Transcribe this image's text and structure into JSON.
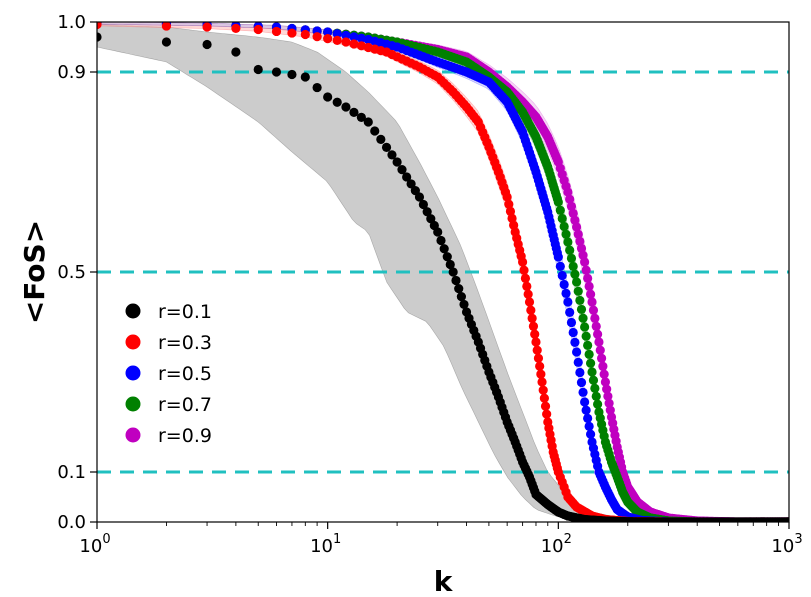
{
  "chart_data": {
    "type": "scatter",
    "xscale": "log",
    "xlim": [
      1,
      1000
    ],
    "ylim": [
      0,
      1
    ],
    "xlabel": "k",
    "ylabel": "<FoS>",
    "xticks": [
      {
        "value": 1,
        "base": "10",
        "exp": "0"
      },
      {
        "value": 10,
        "base": "10",
        "exp": "1"
      },
      {
        "value": 100,
        "base": "10",
        "exp": "2"
      },
      {
        "value": 1000,
        "base": "10",
        "exp": "3"
      }
    ],
    "yticks": [
      {
        "value": 0,
        "label": "0.0"
      },
      {
        "value": 0.1,
        "label": "0.1"
      },
      {
        "value": 0.5,
        "label": "0.5"
      },
      {
        "value": 0.9,
        "label": "0.9"
      },
      {
        "value": 1,
        "label": "1.0"
      }
    ],
    "hlines": [
      0.1,
      0.5,
      0.9
    ],
    "hline_color": "#20c0c0",
    "legend_position": "center-left",
    "series": [
      {
        "name": "r=0.1",
        "color": "#000000",
        "band_color": "#b0b0b0",
        "points": [
          [
            1,
            0.97
          ],
          [
            2,
            0.96
          ],
          [
            3,
            0.955
          ],
          [
            4,
            0.94
          ],
          [
            5,
            0.905
          ],
          [
            6,
            0.9
          ],
          [
            7,
            0.895
          ],
          [
            8,
            0.89
          ],
          [
            10,
            0.85
          ],
          [
            12,
            0.83
          ],
          [
            15,
            0.8
          ],
          [
            20,
            0.72
          ],
          [
            25,
            0.65
          ],
          [
            30,
            0.58
          ],
          [
            35,
            0.5
          ],
          [
            40,
            0.42
          ],
          [
            45,
            0.36
          ],
          [
            50,
            0.3
          ],
          [
            55,
            0.25
          ],
          [
            60,
            0.2
          ],
          [
            65,
            0.16
          ],
          [
            70,
            0.12
          ],
          [
            75,
            0.09
          ],
          [
            80,
            0.055
          ],
          [
            90,
            0.035
          ],
          [
            100,
            0.02
          ],
          [
            110,
            0.012
          ],
          [
            130,
            0.005
          ],
          [
            160,
            0.002
          ],
          [
            200,
            0.0005
          ],
          [
            300,
            0.0
          ],
          [
            500,
            0.0
          ],
          [
            1000,
            0.0
          ]
        ],
        "band_low": [
          [
            1,
            0.95
          ],
          [
            2,
            0.92
          ],
          [
            3,
            0.87
          ],
          [
            5,
            0.8
          ],
          [
            7,
            0.74
          ],
          [
            10,
            0.68
          ],
          [
            13,
            0.6
          ],
          [
            15,
            0.58
          ],
          [
            18,
            0.48
          ],
          [
            22,
            0.42
          ],
          [
            27,
            0.4
          ],
          [
            32,
            0.35
          ],
          [
            38,
            0.27
          ],
          [
            45,
            0.2
          ],
          [
            52,
            0.14
          ],
          [
            60,
            0.09
          ],
          [
            70,
            0.05
          ],
          [
            80,
            0.025
          ],
          [
            100,
            0.01
          ],
          [
            130,
            0.003
          ],
          [
            200,
            0.0
          ],
          [
            1000,
            0.0
          ]
        ],
        "band_high": [
          [
            1,
            0.995
          ],
          [
            2,
            0.99
          ],
          [
            3,
            0.98
          ],
          [
            5,
            0.97
          ],
          [
            7,
            0.96
          ],
          [
            9,
            0.94
          ],
          [
            12,
            0.9
          ],
          [
            15,
            0.86
          ],
          [
            20,
            0.8
          ],
          [
            25,
            0.72
          ],
          [
            30,
            0.65
          ],
          [
            38,
            0.55
          ],
          [
            45,
            0.46
          ],
          [
            52,
            0.38
          ],
          [
            60,
            0.3
          ],
          [
            70,
            0.22
          ],
          [
            80,
            0.15
          ],
          [
            90,
            0.1
          ],
          [
            110,
            0.05
          ],
          [
            140,
            0.02
          ],
          [
            200,
            0.005
          ],
          [
            300,
            0.0
          ],
          [
            1000,
            0.0
          ]
        ]
      },
      {
        "name": "r=0.3",
        "color": "#ff0000",
        "band_color": "#ffb6b6",
        "points": [
          [
            1,
            0.995
          ],
          [
            3,
            0.99
          ],
          [
            5,
            0.985
          ],
          [
            8,
            0.975
          ],
          [
            12,
            0.96
          ],
          [
            18,
            0.94
          ],
          [
            25,
            0.91
          ],
          [
            30,
            0.89
          ],
          [
            35,
            0.86
          ],
          [
            40,
            0.83
          ],
          [
            45,
            0.8
          ],
          [
            50,
            0.75
          ],
          [
            55,
            0.7
          ],
          [
            60,
            0.65
          ],
          [
            65,
            0.58
          ],
          [
            70,
            0.52
          ],
          [
            75,
            0.44
          ],
          [
            80,
            0.36
          ],
          [
            85,
            0.28
          ],
          [
            90,
            0.2
          ],
          [
            95,
            0.14
          ],
          [
            100,
            0.1
          ],
          [
            105,
            0.075
          ],
          [
            110,
            0.05
          ],
          [
            120,
            0.03
          ],
          [
            140,
            0.012
          ],
          [
            160,
            0.005
          ],
          [
            200,
            0.001
          ],
          [
            300,
            0.0
          ],
          [
            1000,
            0.0
          ]
        ],
        "band_width": 0.03
      },
      {
        "name": "r=0.5",
        "color": "#0000ff",
        "band_color": "#b6b6ff",
        "points": [
          [
            1,
            0.998
          ],
          [
            3,
            0.995
          ],
          [
            6,
            0.99
          ],
          [
            10,
            0.98
          ],
          [
            15,
            0.965
          ],
          [
            20,
            0.95
          ],
          [
            30,
            0.92
          ],
          [
            40,
            0.9
          ],
          [
            50,
            0.88
          ],
          [
            60,
            0.84
          ],
          [
            70,
            0.78
          ],
          [
            80,
            0.7
          ],
          [
            90,
            0.62
          ],
          [
            100,
            0.53
          ],
          [
            110,
            0.44
          ],
          [
            120,
            0.34
          ],
          [
            130,
            0.24
          ],
          [
            140,
            0.16
          ],
          [
            150,
            0.1
          ],
          [
            160,
            0.07
          ],
          [
            170,
            0.045
          ],
          [
            180,
            0.025
          ],
          [
            200,
            0.01
          ],
          [
            230,
            0.003
          ],
          [
            300,
            0.0
          ],
          [
            1000,
            0.0
          ]
        ],
        "band_width": 0.03
      },
      {
        "name": "r=0.7",
        "color": "#008000",
        "band_color": "#b6dcb6",
        "points": [
          [
            1,
            0.998
          ],
          [
            3,
            0.995
          ],
          [
            6,
            0.99
          ],
          [
            10,
            0.98
          ],
          [
            15,
            0.97
          ],
          [
            20,
            0.96
          ],
          [
            30,
            0.94
          ],
          [
            40,
            0.92
          ],
          [
            50,
            0.89
          ],
          [
            60,
            0.86
          ],
          [
            70,
            0.82
          ],
          [
            80,
            0.77
          ],
          [
            90,
            0.71
          ],
          [
            100,
            0.64
          ],
          [
            110,
            0.56
          ],
          [
            120,
            0.48
          ],
          [
            130,
            0.39
          ],
          [
            140,
            0.3
          ],
          [
            150,
            0.22
          ],
          [
            160,
            0.16
          ],
          [
            170,
            0.12
          ],
          [
            180,
            0.09
          ],
          [
            190,
            0.06
          ],
          [
            200,
            0.04
          ],
          [
            220,
            0.02
          ],
          [
            250,
            0.008
          ],
          [
            300,
            0.002
          ],
          [
            400,
            0.0
          ],
          [
            1000,
            0.0
          ]
        ],
        "band_width": 0.03
      },
      {
        "name": "r=0.9",
        "color": "#c000c0",
        "band_color": "#ecb6ec",
        "points": [
          [
            1,
            0.998
          ],
          [
            3,
            0.995
          ],
          [
            6,
            0.99
          ],
          [
            10,
            0.98
          ],
          [
            15,
            0.97
          ],
          [
            20,
            0.96
          ],
          [
            30,
            0.945
          ],
          [
            40,
            0.93
          ],
          [
            50,
            0.9
          ],
          [
            60,
            0.87
          ],
          [
            70,
            0.84
          ],
          [
            80,
            0.81
          ],
          [
            90,
            0.77
          ],
          [
            100,
            0.72
          ],
          [
            110,
            0.66
          ],
          [
            120,
            0.59
          ],
          [
            130,
            0.52
          ],
          [
            140,
            0.44
          ],
          [
            150,
            0.36
          ],
          [
            160,
            0.28
          ],
          [
            170,
            0.21
          ],
          [
            180,
            0.15
          ],
          [
            190,
            0.1
          ],
          [
            200,
            0.07
          ],
          [
            220,
            0.04
          ],
          [
            250,
            0.02
          ],
          [
            300,
            0.008
          ],
          [
            400,
            0.002
          ],
          [
            600,
            0.0
          ],
          [
            1000,
            0.0
          ]
        ],
        "band_width": 0.035
      }
    ]
  }
}
